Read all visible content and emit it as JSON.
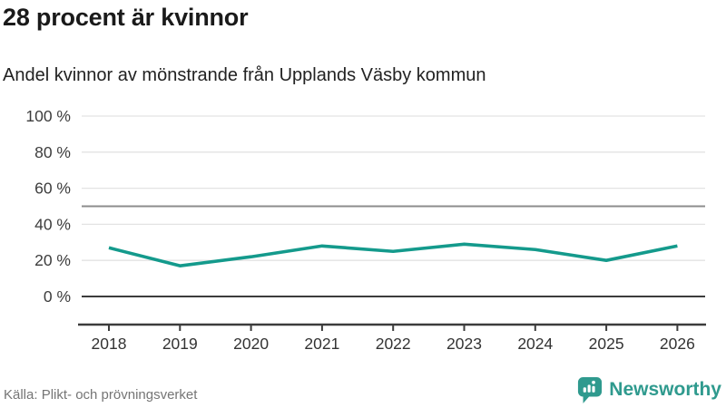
{
  "chart_data": {
    "type": "line",
    "title": "28 procent är kvinnor",
    "subtitle": "Andel kvinnor av mönstrande från Upplands Väsby kommun",
    "x": [
      2018,
      2019,
      2020,
      2021,
      2022,
      2023,
      2024,
      2025,
      2026
    ],
    "series": [
      {
        "name": "Andel kvinnor av mönstrande",
        "values": [
          27,
          17,
          22,
          28,
          25,
          29,
          26,
          20,
          28
        ]
      }
    ],
    "ylim": [
      0,
      100
    ],
    "ytick_values": [
      100,
      80,
      60,
      40,
      20,
      0
    ],
    "ytick_labels": [
      "100 %",
      "80 %",
      "60 %",
      "40 %",
      "20 %",
      "0 %"
    ],
    "reference_line": 50,
    "grid": true,
    "legend": "none",
    "source": "Källa: Plikt- och prövningsverket"
  },
  "footer": {
    "brand": "Newsworthy"
  },
  "colors": {
    "line": "#149a8c",
    "grid": "#e3e3e3",
    "reference": "#8c8c8c",
    "axis": "#3c3c3c",
    "tick_text": "#3d3d3d",
    "muted_text": "#757575",
    "brand_teal": "#2f9a8e"
  }
}
